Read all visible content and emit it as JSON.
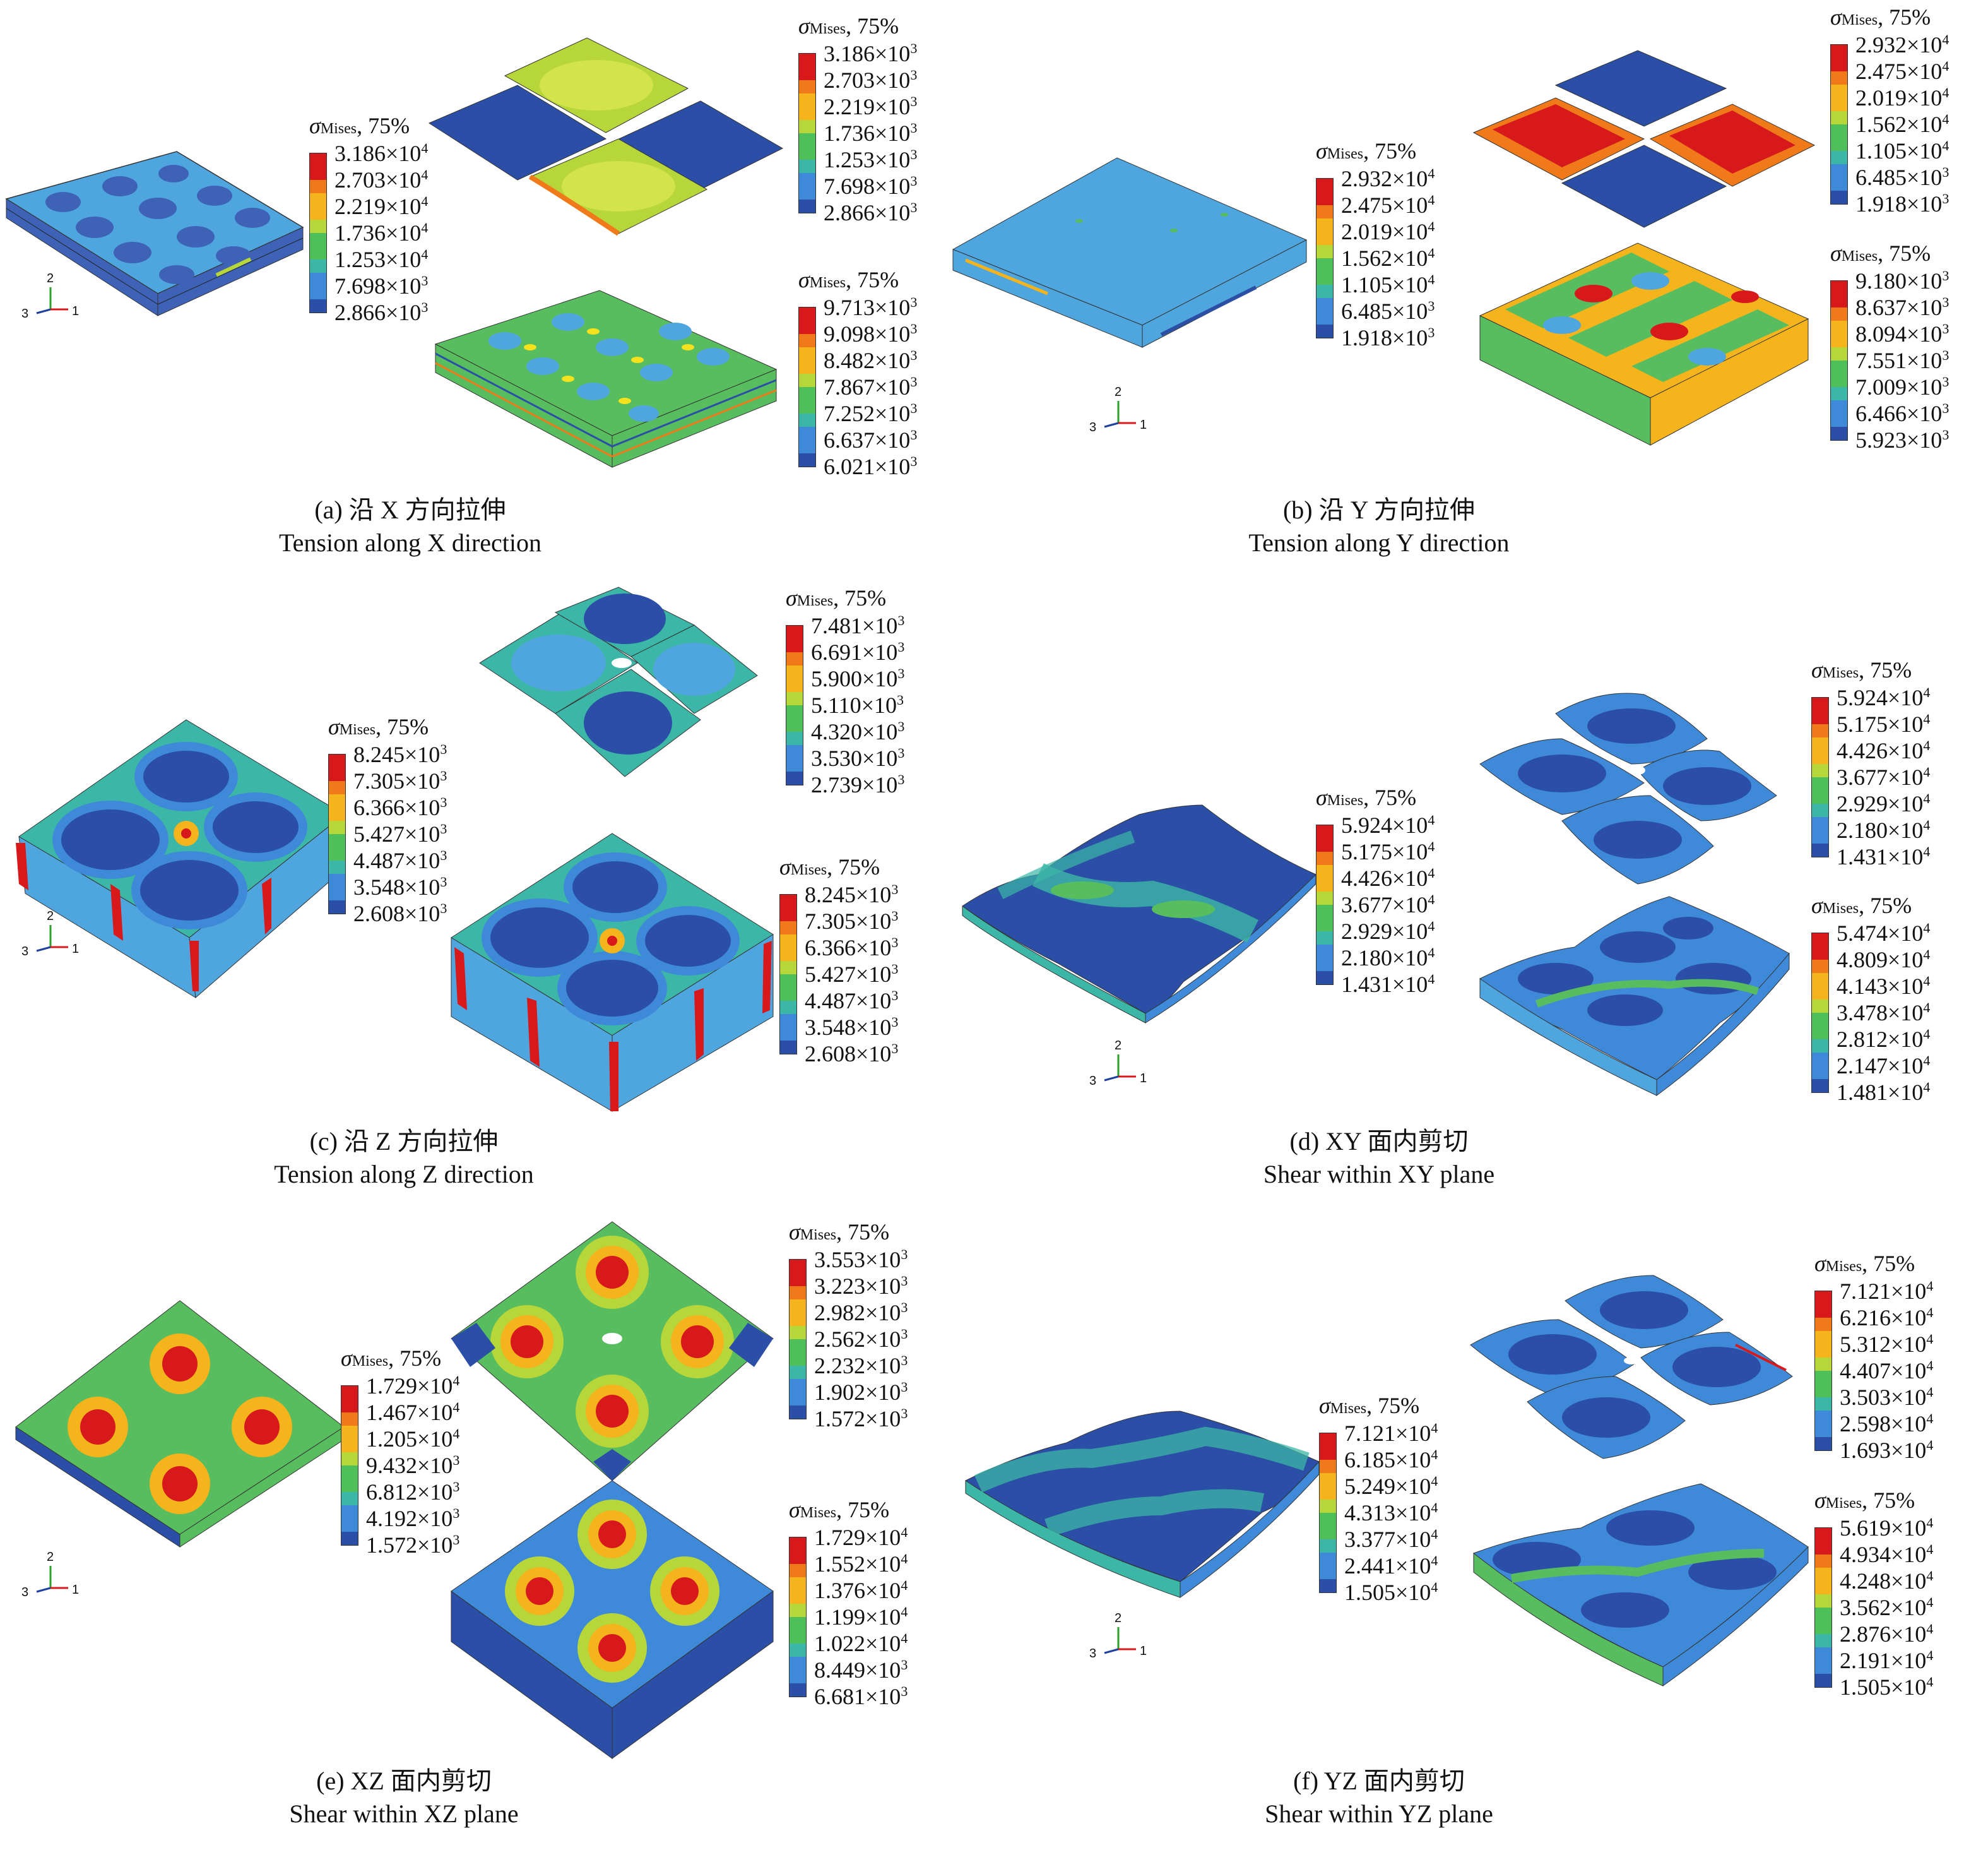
{
  "legend_title": "σ",
  "legend_sub": "Mises",
  "legend_pct": ", 75%",
  "palette": [
    "#d7191c",
    "#f07a1a",
    "#f5b31c",
    "#b6d63a",
    "#4fbf5a",
    "#3cb6a6",
    "#3f8ad8",
    "#2b4fa6"
  ],
  "colors": {
    "base_blue": "#3d62b6",
    "light_blue": "#4fa6df",
    "green": "#58bd5e",
    "lime": "#b6d63a",
    "red": "#d7191c",
    "orange": "#f07a1a"
  },
  "panels": [
    {
      "caption_zh": "(a) 沿 X 方向拉伸",
      "caption_en": "Tension along X direction",
      "legends": [
        {
          "labels": [
            "3.186×10",
            "2.703×10",
            "2.219×10",
            "1.736×10",
            "1.253×10",
            "7.698×10",
            "2.866×10"
          ],
          "exps": [
            "4",
            "4",
            "4",
            "4",
            "4",
            "3",
            "3"
          ]
        },
        {
          "labels": [
            "3.186×10",
            "2.703×10",
            "2.219×10",
            "1.736×10",
            "1.253×10",
            "7.698×10",
            "2.866×10"
          ],
          "exps": [
            "3",
            "3",
            "3",
            "3",
            "3",
            "3",
            "3"
          ]
        },
        {
          "labels": [
            "9.713×10",
            "9.098×10",
            "8.482×10",
            "7.867×10",
            "7.252×10",
            "6.637×10",
            "6.021×10"
          ],
          "exps": [
            "3",
            "3",
            "3",
            "3",
            "3",
            "3",
            "3"
          ]
        }
      ]
    },
    {
      "caption_zh": "(b) 沿 Y 方向拉伸",
      "caption_en": "Tension along Y direction",
      "legends": [
        {
          "labels": [
            "2.932×10",
            "2.475×10",
            "2.019×10",
            "1.562×10",
            "1.105×10",
            "6.485×10",
            "1.918×10"
          ],
          "exps": [
            "4",
            "4",
            "4",
            "4",
            "4",
            "3",
            "3"
          ]
        },
        {
          "labels": [
            "2.932×10",
            "2.475×10",
            "2.019×10",
            "1.562×10",
            "1.105×10",
            "6.485×10",
            "1.918×10"
          ],
          "exps": [
            "4",
            "4",
            "4",
            "4",
            "4",
            "3",
            "3"
          ]
        },
        {
          "labels": [
            "9.180×10",
            "8.637×10",
            "8.094×10",
            "7.551×10",
            "7.009×10",
            "6.466×10",
            "5.923×10"
          ],
          "exps": [
            "3",
            "3",
            "3",
            "3",
            "3",
            "3",
            "3"
          ]
        }
      ]
    },
    {
      "caption_zh": "(c) 沿 Z 方向拉伸",
      "caption_en": "Tension along Z direction",
      "legends": [
        {
          "labels": [
            "8.245×10",
            "7.305×10",
            "6.366×10",
            "5.427×10",
            "4.487×10",
            "3.548×10",
            "2.608×10"
          ],
          "exps": [
            "3",
            "3",
            "3",
            "3",
            "3",
            "3",
            "3"
          ]
        },
        {
          "labels": [
            "7.481×10",
            "6.691×10",
            "5.900×10",
            "5.110×10",
            "4.320×10",
            "3.530×10",
            "2.739×10"
          ],
          "exps": [
            "3",
            "3",
            "3",
            "3",
            "3",
            "3",
            "3"
          ]
        },
        {
          "labels": [
            "8.245×10",
            "7.305×10",
            "6.366×10",
            "5.427×10",
            "4.487×10",
            "3.548×10",
            "2.608×10"
          ],
          "exps": [
            "3",
            "3",
            "3",
            "3",
            "3",
            "3",
            "3"
          ]
        }
      ]
    },
    {
      "caption_zh": "(d) XY 面内剪切",
      "caption_en": "Shear within XY plane",
      "legends": [
        {
          "labels": [
            "5.924×10",
            "5.175×10",
            "4.426×10",
            "3.677×10",
            "2.929×10",
            "2.180×10",
            "1.431×10"
          ],
          "exps": [
            "4",
            "4",
            "4",
            "4",
            "4",
            "4",
            "4"
          ]
        },
        {
          "labels": [
            "5.924×10",
            "5.175×10",
            "4.426×10",
            "3.677×10",
            "2.929×10",
            "2.180×10",
            "1.431×10"
          ],
          "exps": [
            "4",
            "4",
            "4",
            "4",
            "4",
            "4",
            "4"
          ]
        },
        {
          "labels": [
            "5.474×10",
            "4.809×10",
            "4.143×10",
            "3.478×10",
            "2.812×10",
            "2.147×10",
            "1.481×10"
          ],
          "exps": [
            "4",
            "4",
            "4",
            "4",
            "4",
            "4",
            "4"
          ]
        }
      ]
    },
    {
      "caption_zh": "(e) XZ 面内剪切",
      "caption_en": "Shear within XZ plane",
      "legends": [
        {
          "labels": [
            "1.729×10",
            "1.467×10",
            "1.205×10",
            "9.432×10",
            "6.812×10",
            "4.192×10",
            "1.572×10"
          ],
          "exps": [
            "4",
            "4",
            "4",
            "3",
            "3",
            "3",
            "3"
          ]
        },
        {
          "labels": [
            "3.553×10",
            "3.223×10",
            "2.982×10",
            "2.562×10",
            "2.232×10",
            "1.902×10",
            "1.572×10"
          ],
          "exps": [
            "3",
            "3",
            "3",
            "3",
            "3",
            "3",
            "3"
          ]
        },
        {
          "labels": [
            "1.729×10",
            "1.552×10",
            "1.376×10",
            "1.199×10",
            "1.022×10",
            "8.449×10",
            "6.681×10"
          ],
          "exps": [
            "4",
            "4",
            "4",
            "4",
            "4",
            "3",
            "3"
          ]
        }
      ]
    },
    {
      "caption_zh": "(f) YZ 面内剪切",
      "caption_en": "Shear within YZ plane",
      "legends": [
        {
          "labels": [
            "7.121×10",
            "6.185×10",
            "5.249×10",
            "4.313×10",
            "3.377×10",
            "2.441×10",
            "1.505×10"
          ],
          "exps": [
            "4",
            "4",
            "4",
            "4",
            "4",
            "4",
            "4"
          ]
        },
        {
          "labels": [
            "7.121×10",
            "6.216×10",
            "5.312×10",
            "4.407×10",
            "3.503×10",
            "2.598×10",
            "1.693×10"
          ],
          "exps": [
            "4",
            "4",
            "4",
            "4",
            "4",
            "4",
            "4"
          ]
        },
        {
          "labels": [
            "5.619×10",
            "4.934×10",
            "4.248×10",
            "3.562×10",
            "2.876×10",
            "2.191×10",
            "1.505×10"
          ],
          "exps": [
            "4",
            "4",
            "4",
            "4",
            "4",
            "4",
            "4"
          ]
        }
      ]
    }
  ],
  "axis_labels": {
    "y": "2",
    "z": "3",
    "x": "1"
  }
}
